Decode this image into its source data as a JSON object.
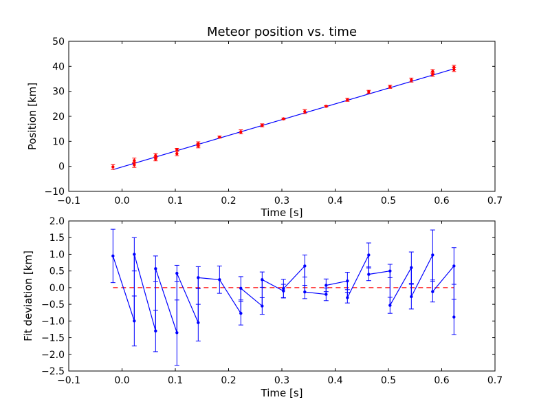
{
  "chart_data": [
    {
      "type": "scatter",
      "title": "Meteor position vs. time",
      "xlabel": "Time [s]",
      "ylabel": "Position [km]",
      "xlim": [
        -0.1,
        0.7
      ],
      "ylim": [
        -10,
        50
      ],
      "xticks": [
        "−0.1",
        "0.0",
        "0.1",
        "0.2",
        "0.3",
        "0.4",
        "0.5",
        "0.6",
        "0.7"
      ],
      "yticks": [
        "−10",
        "0",
        "10",
        "20",
        "30",
        "40",
        "50"
      ],
      "grid": false,
      "colors": {
        "points": "#ff0000",
        "fit": "#0000ff"
      },
      "points": [
        {
          "x": -0.017,
          "y": -0.2,
          "err": 1.0
        },
        {
          "x": 0.023,
          "y": 2.3,
          "err": 1.0
        },
        {
          "x": 0.023,
          "y": 0.6,
          "err": 1.0
        },
        {
          "x": 0.063,
          "y": 4.3,
          "err": 0.8
        },
        {
          "x": 0.063,
          "y": 3.0,
          "err": 0.8
        },
        {
          "x": 0.103,
          "y": 6.6,
          "err": 0.6
        },
        {
          "x": 0.103,
          "y": 5.1,
          "err": 0.9
        },
        {
          "x": 0.143,
          "y": 9.0,
          "err": 0.8
        },
        {
          "x": 0.143,
          "y": 8.2,
          "err": 0.8
        },
        {
          "x": 0.183,
          "y": 11.7,
          "err": 0.4
        },
        {
          "x": 0.223,
          "y": 13.8,
          "err": 0.8
        },
        {
          "x": 0.263,
          "y": 16.4,
          "err": 0.6
        },
        {
          "x": 0.303,
          "y": 19.0,
          "err": 0.3
        },
        {
          "x": 0.343,
          "y": 21.9,
          "err": 0.8
        },
        {
          "x": 0.383,
          "y": 24.0,
          "err": 0.3
        },
        {
          "x": 0.423,
          "y": 26.6,
          "err": 0.6
        },
        {
          "x": 0.463,
          "y": 29.8,
          "err": 0.6
        },
        {
          "x": 0.503,
          "y": 31.8,
          "err": 0.6
        },
        {
          "x": 0.543,
          "y": 34.5,
          "err": 0.8
        },
        {
          "x": 0.583,
          "y": 37.9,
          "err": 0.8
        },
        {
          "x": 0.583,
          "y": 36.8,
          "err": 0.8
        },
        {
          "x": 0.623,
          "y": 39.6,
          "err": 0.8
        },
        {
          "x": 0.623,
          "y": 38.7,
          "err": 0.8
        }
      ],
      "fit_line": {
        "x": [
          -0.017,
          0.623
        ],
        "y": [
          -1.3,
          39.0
        ]
      }
    },
    {
      "type": "line",
      "xlabel": "Time [s]",
      "ylabel": "Fit deviation [km]",
      "xlim": [
        -0.1,
        0.7
      ],
      "ylim": [
        -2.5,
        2.0
      ],
      "xticks": [
        "−0.1",
        "0.0",
        "0.1",
        "0.2",
        "0.3",
        "0.4",
        "0.5",
        "0.6",
        "0.7"
      ],
      "yticks": [
        "−2.5",
        "−2.0",
        "−1.5",
        "−1.0",
        "−0.5",
        "0.0",
        "0.5",
        "1.0",
        "1.5",
        "2.0"
      ],
      "grid": false,
      "colors": {
        "series": "#0000ff",
        "zero_line": "#ff0000"
      },
      "reference_line_y": 0,
      "points": [
        {
          "x": -0.017,
          "y": 0.95,
          "err": 0.8
        },
        {
          "x": 0.023,
          "y": -1.0,
          "err": 0.75
        },
        {
          "x": 0.023,
          "y": 1.0,
          "err": 0.5
        },
        {
          "x": 0.063,
          "y": -1.3,
          "err": 0.62
        },
        {
          "x": 0.063,
          "y": 0.57,
          "err": 0.38
        },
        {
          "x": 0.103,
          "y": -1.35,
          "err": 0.98
        },
        {
          "x": 0.103,
          "y": 0.43,
          "err": 0.24
        },
        {
          "x": 0.143,
          "y": -1.05,
          "err": 0.55
        },
        {
          "x": 0.143,
          "y": 0.3,
          "err": 0.33
        },
        {
          "x": 0.183,
          "y": 0.24,
          "err": 0.41
        },
        {
          "x": 0.223,
          "y": -0.77,
          "err": 0.35
        },
        {
          "x": 0.223,
          "y": -0.02,
          "err": 0.35
        },
        {
          "x": 0.263,
          "y": -0.55,
          "err": 0.25
        },
        {
          "x": 0.263,
          "y": 0.24,
          "err": 0.23
        },
        {
          "x": 0.303,
          "y": -0.1,
          "err": 0.2
        },
        {
          "x": 0.303,
          "y": -0.03,
          "err": 0.28
        },
        {
          "x": 0.343,
          "y": 0.65,
          "err": 0.33
        },
        {
          "x": 0.343,
          "y": -0.13,
          "err": 0.2
        },
        {
          "x": 0.383,
          "y": -0.2,
          "err": 0.19
        },
        {
          "x": 0.383,
          "y": 0.07,
          "err": 0.19
        },
        {
          "x": 0.423,
          "y": 0.2,
          "err": 0.26
        },
        {
          "x": 0.423,
          "y": -0.3,
          "err": 0.16
        },
        {
          "x": 0.463,
          "y": 0.98,
          "err": 0.36
        },
        {
          "x": 0.463,
          "y": 0.4,
          "err": 0.19
        },
        {
          "x": 0.503,
          "y": 0.5,
          "err": 0.2
        },
        {
          "x": 0.503,
          "y": -0.53,
          "err": 0.24
        },
        {
          "x": 0.543,
          "y": 0.6,
          "err": 0.47
        },
        {
          "x": 0.543,
          "y": -0.27,
          "err": 0.37
        },
        {
          "x": 0.583,
          "y": 0.98,
          "err": 0.75
        },
        {
          "x": 0.583,
          "y": -0.12,
          "err": 0.31
        },
        {
          "x": 0.623,
          "y": 0.65,
          "err": 0.55
        },
        {
          "x": 0.623,
          "y": -0.88,
          "err": 0.53
        }
      ]
    }
  ]
}
